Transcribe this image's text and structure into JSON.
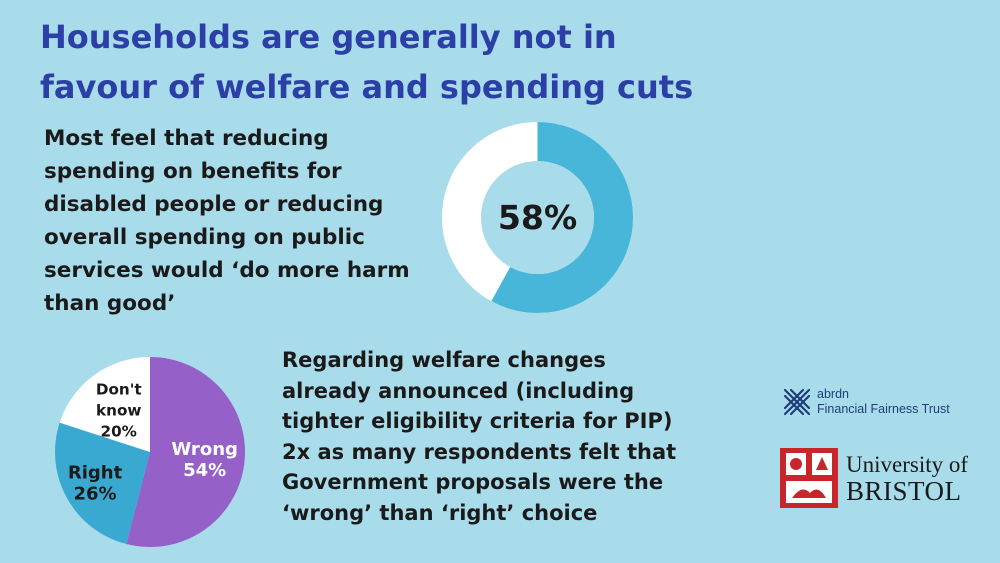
{
  "title": {
    "line1": "Households are generally not in",
    "line2": "favour of welfare and spending cuts"
  },
  "stat_text": {
    "lines": [
      "Most feel that reducing",
      "spending on benefits for",
      "disabled people or reducing",
      "overall spending on public",
      "services would ‘do more harm",
      "than good’"
    ]
  },
  "body_text": {
    "lines": [
      "Regarding welfare changes",
      "already announced (including",
      "tighter eligibility criteria for PIP)",
      "2x as many respondents felt that",
      "Government proposals were the",
      "‘wrong’ than ‘right’ choice"
    ]
  },
  "logos": {
    "abrdn_line1": "abrdn",
    "abrdn_line2": "Financial Fairness Trust",
    "bristol_line1": "University of",
    "bristol_line2": "BRISTOL"
  },
  "colors": {
    "background": "#a9dceb",
    "title": "#2c3fa6",
    "donut_fill": "#47b6d8",
    "donut_rest": "#ffffff",
    "wrong": "#9560c8",
    "right": "#3aa9d1",
    "dont_know": "#ffffff"
  },
  "chart_data": [
    {
      "type": "pie",
      "variant": "donut",
      "values": [
        58,
        42
      ],
      "center_label": "58%"
    },
    {
      "type": "pie",
      "categories": [
        "Wrong",
        "Right",
        "Don't know"
      ],
      "values": [
        54,
        26,
        20
      ],
      "labels": [
        {
          "name_lines": [
            "Wrong"
          ],
          "value": "54%"
        },
        {
          "name_lines": [
            "Right"
          ],
          "value": "26%"
        },
        {
          "name_lines": [
            "Don't",
            "know"
          ],
          "value": "20%"
        }
      ]
    }
  ]
}
